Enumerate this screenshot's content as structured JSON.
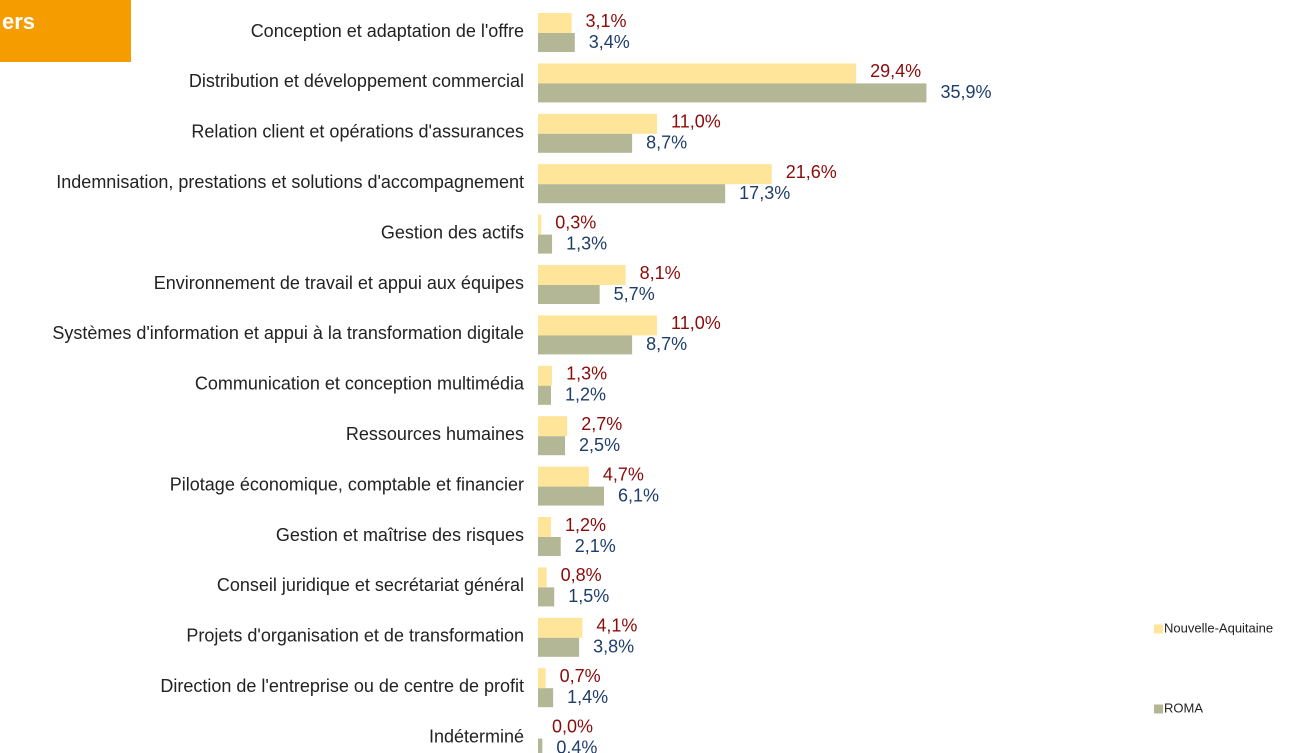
{
  "header_badge": "ers",
  "chart_data": {
    "type": "bar",
    "categories": [
      "Conception et adaptation de l'offre",
      "Distribution et développement commercial",
      "Relation client et opérations d'assurances",
      "Indemnisation, prestations et solutions d'accompagnement",
      "Gestion des actifs",
      "Environnement de travail et appui aux équipes",
      "Systèmes d'information et appui à la transformation digitale",
      "Communication et conception multimédia",
      "Ressources humaines",
      "Pilotage économique, comptable et financier",
      "Gestion et maîtrise des risques",
      "Conseil juridique et secrétariat général",
      "Projets d'organisation et de transformation",
      "Direction de l'entreprise ou de centre de profit",
      "Indéterminé"
    ],
    "series": [
      {
        "name": "Nouvelle-Aquitaine",
        "color": "#fee599",
        "label_color": "#8b0a0a",
        "values": [
          3.1,
          29.4,
          11.0,
          21.6,
          0.3,
          8.1,
          11.0,
          1.3,
          2.7,
          4.7,
          1.2,
          0.8,
          4.1,
          0.7,
          0.0
        ],
        "value_labels": [
          "3,1%",
          "29,4%",
          "11,0%",
          "21,6%",
          "0,3%",
          "8,1%",
          "11,0%",
          "1,3%",
          "2,7%",
          "4,7%",
          "1,2%",
          "0,8%",
          "4,1%",
          "0,7%",
          "0,0%"
        ]
      },
      {
        "name": "ROMA",
        "color": "#b4b796",
        "label_color": "#1f3d6b",
        "values": [
          3.4,
          35.9,
          8.7,
          17.3,
          1.3,
          5.7,
          8.7,
          1.2,
          2.5,
          6.1,
          2.1,
          1.5,
          3.8,
          1.4,
          0.4
        ],
        "value_labels": [
          "3,4%",
          "35,9%",
          "8,7%",
          "17,3%",
          "1,3%",
          "5,7%",
          "8,7%",
          "1,2%",
          "2,5%",
          "6,1%",
          "2,1%",
          "1,5%",
          "3,8%",
          "1,4%",
          "0,4%"
        ]
      }
    ],
    "xlim": [
      0,
      40
    ],
    "legend": "right"
  }
}
